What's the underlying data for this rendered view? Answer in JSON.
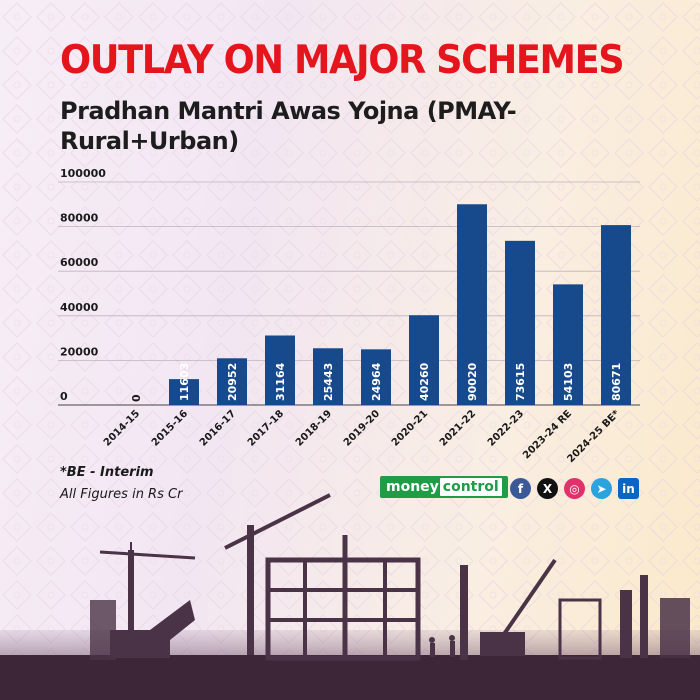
{
  "header": {
    "title": "OUTLAY ON MAJOR SCHEMES",
    "subtitle": "Pradhan Mantri Awas Yojna (PMAY-Rural+Urban)"
  },
  "notes": {
    "interim": "*BE - Interim",
    "units": "All Figures in Rs Cr"
  },
  "brand": {
    "logo_part1": "money",
    "logo_part2": "control"
  },
  "social": [
    {
      "icon": "facebook-icon",
      "glyph": "f",
      "color": "#3b5998"
    },
    {
      "icon": "x-icon",
      "glyph": "X",
      "color": "#111111"
    },
    {
      "icon": "instagram-icon",
      "glyph": "◎",
      "color": "#e1306c"
    },
    {
      "icon": "telegram-icon",
      "glyph": "➤",
      "color": "#2aa3de"
    },
    {
      "icon": "linkedin-icon",
      "glyph": "in",
      "color": "#0a66c2"
    }
  ],
  "colors": {
    "title": "#e4151c",
    "bar": "#174a8c",
    "brand": "#1e9d46"
  },
  "chart_data": {
    "type": "bar",
    "categories": [
      "2014-15",
      "2015-16",
      "2016-17",
      "2017-18",
      "2018-19",
      "2019-20",
      "2020-21",
      "2021-22",
      "2022-23",
      "2023-24 RE",
      "2024-25 BE*"
    ],
    "values": [
      0,
      11603,
      20952,
      31164,
      25443,
      24964,
      40260,
      90020,
      73615,
      54103,
      80671
    ],
    "yticks": [
      0,
      20000,
      40000,
      60000,
      80000,
      100000
    ],
    "ylim": [
      0,
      100000
    ],
    "xlabel": "",
    "ylabel": "",
    "grid": true
  }
}
